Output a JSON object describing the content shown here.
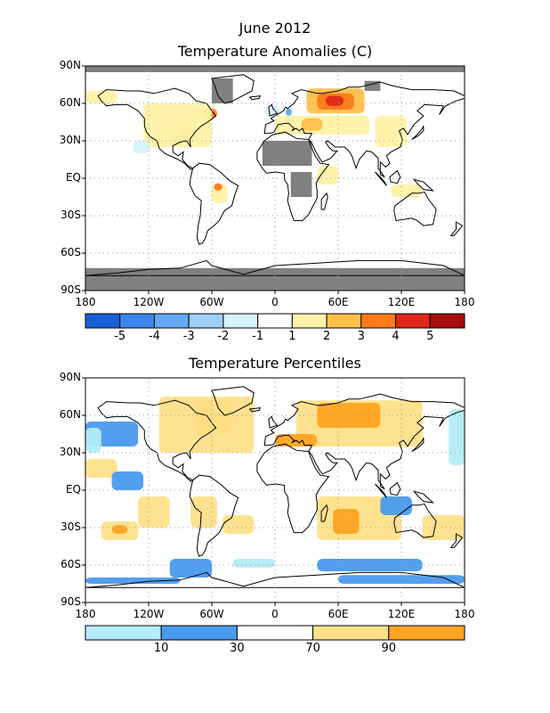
{
  "title": "June 2012",
  "panels": [
    {
      "id": "anomalies",
      "title": "Temperature Anomalies (C)",
      "legend": {
        "colors": [
          "#1a5fd6",
          "#3a86ee",
          "#62a8f4",
          "#9cd0fa",
          "#d6f3fc",
          "#ffffff",
          "#fff2a8",
          "#ffc04a",
          "#ff7a1a",
          "#e02818",
          "#a80e0e"
        ],
        "labels": [
          "-5",
          "-4",
          "-3",
          "-2",
          "-1",
          "1",
          "2",
          "3",
          "4",
          "5"
        ]
      }
    },
    {
      "id": "percentiles",
      "title": "Temperature Percentiles",
      "legend": {
        "colors": [
          "#b4ecf8",
          "#4a9aee",
          "#ffffff",
          "#ffe08a",
          "#ffa422"
        ],
        "labels": [
          "10",
          "30",
          "70",
          "90"
        ]
      }
    }
  ],
  "axes": {
    "lat_labels": [
      "90N",
      "60N",
      "30N",
      "EQ",
      "30S",
      "60S",
      "90S"
    ],
    "lon_labels": [
      "180",
      "120W",
      "60W",
      "0",
      "60E",
      "120E",
      "180"
    ]
  },
  "colors": {
    "missing": "#808080",
    "coast": "#000000"
  }
}
